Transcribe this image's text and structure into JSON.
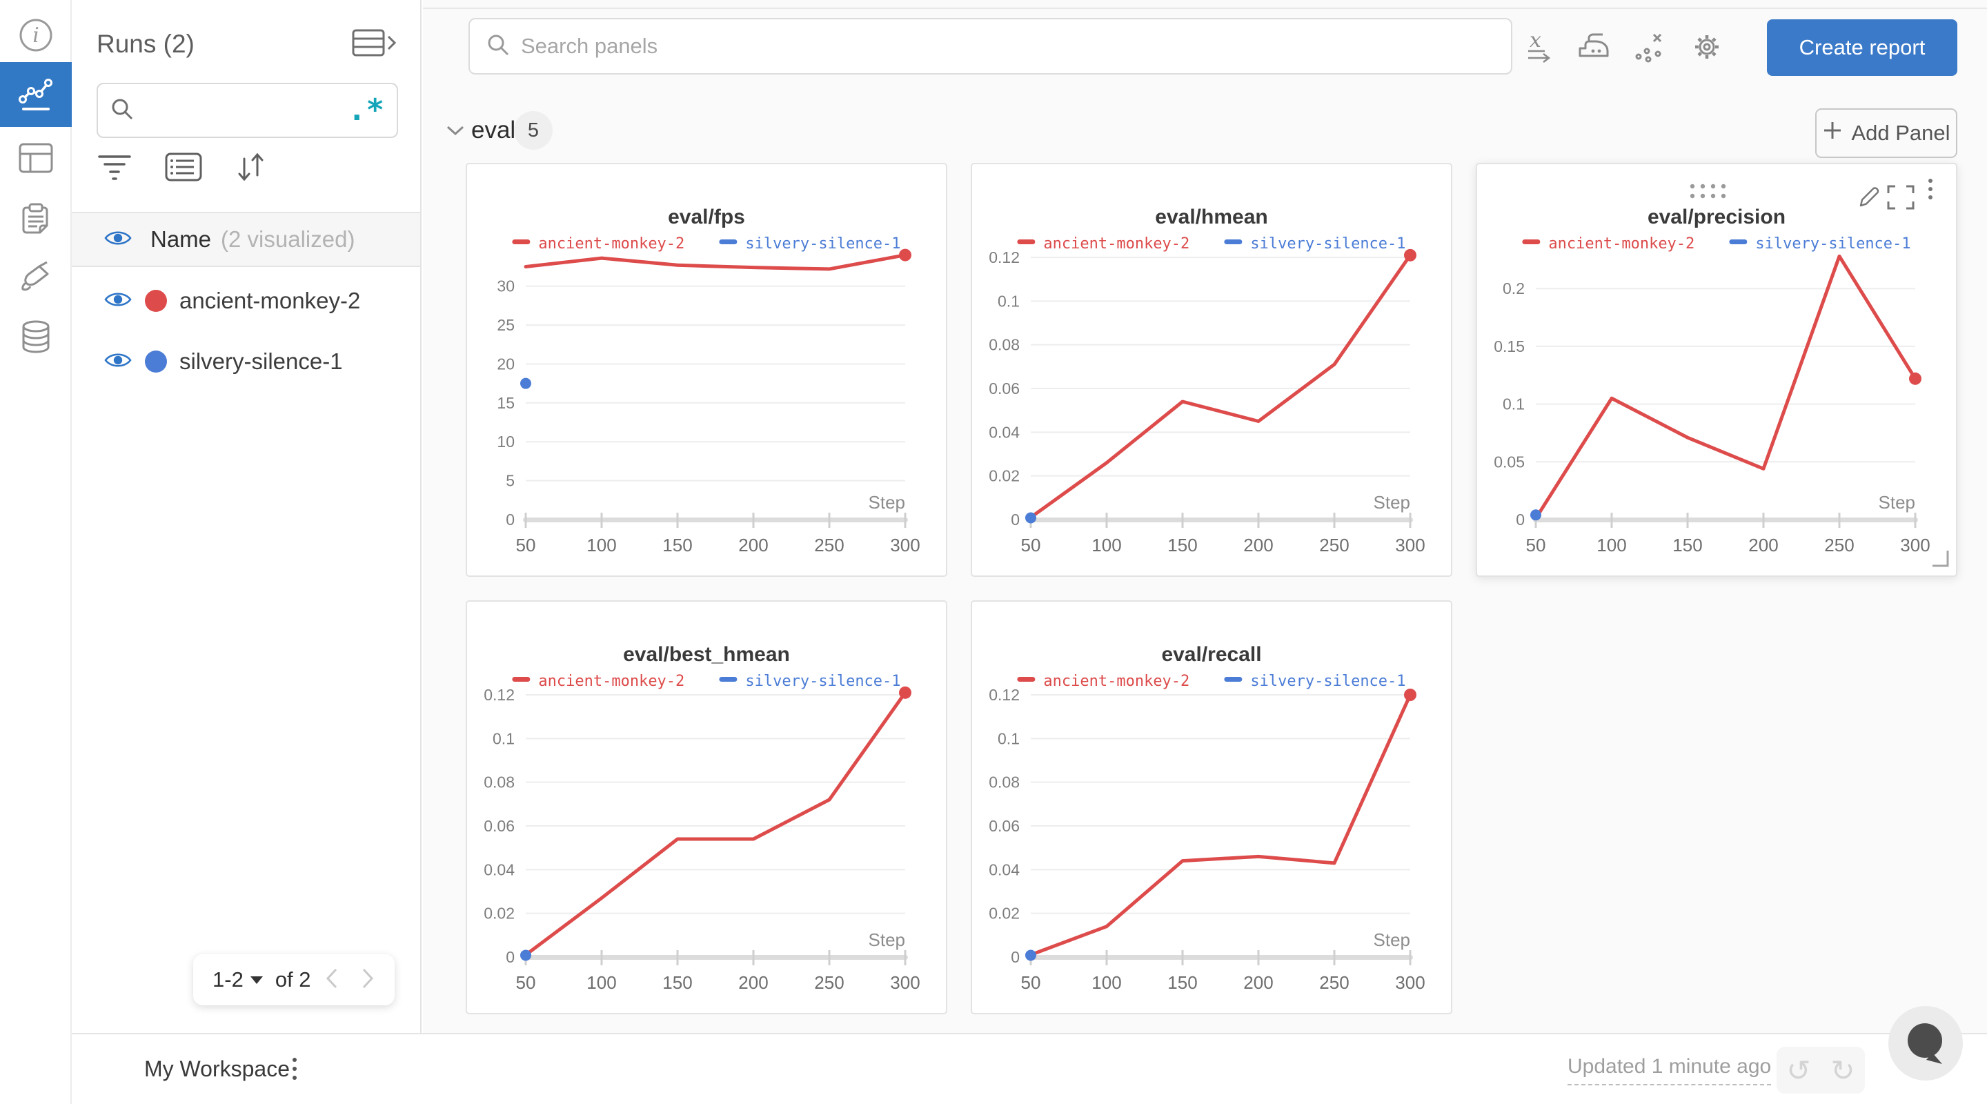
{
  "colors": {
    "run_red": "#dd4b4b",
    "run_blue": "#4b7cd6",
    "primary_button_blue": "#3b7ac9",
    "active_nav_blue": "#3178c5",
    "regex_teal": "#14a5b8",
    "eye_blue": "#2e75c8"
  },
  "nav_rail": {
    "items": [
      {
        "icon": "info-icon",
        "active": false
      },
      {
        "icon": "line-chart-icon",
        "active": true
      },
      {
        "icon": "table-icon",
        "active": false
      },
      {
        "icon": "clipboard-icon",
        "active": false
      },
      {
        "icon": "brush-icon",
        "active": false
      },
      {
        "icon": "database-icon",
        "active": false
      }
    ]
  },
  "runs_panel": {
    "title": "Runs (2)",
    "search_placeholder": "",
    "regex_glyph": ".*",
    "columns_header": {
      "name": "Name",
      "visualized": "(2 visualized)"
    },
    "runs": [
      {
        "name": "ancient-monkey-2",
        "color": "#dd4b4b",
        "visible": true
      },
      {
        "name": "silvery-silence-1",
        "color": "#4b7cd6",
        "visible": true
      }
    ],
    "pagination": {
      "range": "1-2",
      "of": "of 2"
    }
  },
  "topbar": {
    "search_placeholder": "Search panels",
    "create_report_label": "Create report",
    "icons": [
      "x-axis-icon",
      "smoothing-iron-icon",
      "outliers-icon",
      "settings-gear-icon"
    ]
  },
  "section": {
    "name": "eval",
    "panel_count": "5",
    "add_panel_label": "Add Panel"
  },
  "chart_data": [
    {
      "type": "line",
      "title": "eval/fps",
      "x": [
        50,
        100,
        150,
        200,
        250,
        300
      ],
      "xticks": [
        50,
        100,
        150,
        200,
        250,
        300
      ],
      "yticks": [
        0,
        5,
        10,
        15,
        20,
        25,
        30
      ],
      "ylim": [
        0,
        33.7
      ],
      "step_label": "Step",
      "legend": [
        {
          "label": "ancient-monkey-2",
          "color": "#dd4b4b"
        },
        {
          "label": "silvery-silence-1",
          "color": "#4b7cd6"
        }
      ],
      "series": [
        {
          "name": "ancient-monkey-2",
          "color": "#dd4b4b",
          "values": [
            32.5,
            33.6,
            32.7,
            32.4,
            32.2,
            34.0
          ]
        }
      ],
      "points": [
        {
          "name": "silvery-silence-1",
          "color": "#4b7cd6",
          "x": 50,
          "y": 17.5
        }
      ],
      "hovered": false
    },
    {
      "type": "line",
      "title": "eval/hmean",
      "x": [
        50,
        100,
        150,
        200,
        250,
        300
      ],
      "xticks": [
        50,
        100,
        150,
        200,
        250,
        300
      ],
      "yticks": [
        0,
        0.02,
        0.04,
        0.06,
        0.08,
        0.1,
        0.12
      ],
      "ylim": [
        0,
        0.12
      ],
      "step_label": "Step",
      "legend": [
        {
          "label": "ancient-monkey-2",
          "color": "#dd4b4b"
        },
        {
          "label": "silvery-silence-1",
          "color": "#4b7cd6"
        }
      ],
      "series": [
        {
          "name": "ancient-monkey-2",
          "color": "#dd4b4b",
          "values": [
            0.001,
            0.026,
            0.054,
            0.045,
            0.071,
            0.121
          ]
        }
      ],
      "points": [
        {
          "name": "silvery-silence-1",
          "color": "#4b7cd6",
          "x": 50,
          "y": 0.0008
        }
      ],
      "hovered": false
    },
    {
      "type": "line",
      "title": "eval/precision",
      "x": [
        50,
        100,
        150,
        200,
        250,
        300
      ],
      "xticks": [
        50,
        100,
        150,
        200,
        250,
        300
      ],
      "yticks": [
        0,
        0.05,
        0.1,
        0.15,
        0.2
      ],
      "ylim": [
        0,
        0.227
      ],
      "step_label": "Step",
      "legend": [
        {
          "label": "ancient-monkey-2",
          "color": "#dd4b4b"
        },
        {
          "label": "silvery-silence-1",
          "color": "#4b7cd6"
        }
      ],
      "series": [
        {
          "name": "ancient-monkey-2",
          "color": "#dd4b4b",
          "values": [
            0.001,
            0.105,
            0.071,
            0.044,
            0.228,
            0.122
          ]
        }
      ],
      "points": [
        {
          "name": "silvery-silence-1",
          "color": "#4b7cd6",
          "x": 50,
          "y": 0.004
        }
      ],
      "hovered": true
    },
    {
      "type": "line",
      "title": "eval/best_hmean",
      "x": [
        50,
        100,
        150,
        200,
        250,
        300
      ],
      "xticks": [
        50,
        100,
        150,
        200,
        250,
        300
      ],
      "yticks": [
        0,
        0.02,
        0.04,
        0.06,
        0.08,
        0.1,
        0.12
      ],
      "ylim": [
        0,
        0.12
      ],
      "step_label": "Step",
      "legend": [
        {
          "label": "ancient-monkey-2",
          "color": "#dd4b4b"
        },
        {
          "label": "silvery-silence-1",
          "color": "#4b7cd6"
        }
      ],
      "series": [
        {
          "name": "ancient-monkey-2",
          "color": "#dd4b4b",
          "values": [
            0.001,
            0.027,
            0.054,
            0.054,
            0.072,
            0.121
          ]
        }
      ],
      "points": [
        {
          "name": "silvery-silence-1",
          "color": "#4b7cd6",
          "x": 50,
          "y": 0.0008
        }
      ],
      "hovered": false
    },
    {
      "type": "line",
      "title": "eval/recall",
      "x": [
        50,
        100,
        150,
        200,
        250,
        300
      ],
      "xticks": [
        50,
        100,
        150,
        200,
        250,
        300
      ],
      "yticks": [
        0,
        0.02,
        0.04,
        0.06,
        0.08,
        0.1,
        0.12
      ],
      "ylim": [
        0,
        0.12
      ],
      "step_label": "Step",
      "legend": [
        {
          "label": "ancient-monkey-2",
          "color": "#dd4b4b"
        },
        {
          "label": "silvery-silence-1",
          "color": "#4b7cd6"
        }
      ],
      "series": [
        {
          "name": "ancient-monkey-2",
          "color": "#dd4b4b",
          "values": [
            0.001,
            0.014,
            0.044,
            0.046,
            0.043,
            0.12
          ]
        }
      ],
      "points": [
        {
          "name": "silvery-silence-1",
          "color": "#4b7cd6",
          "x": 50,
          "y": 0.0008
        }
      ],
      "hovered": false
    }
  ],
  "bottombar": {
    "workspace_label": "My Workspace",
    "updated_label": "Updated 1 minute ago"
  }
}
